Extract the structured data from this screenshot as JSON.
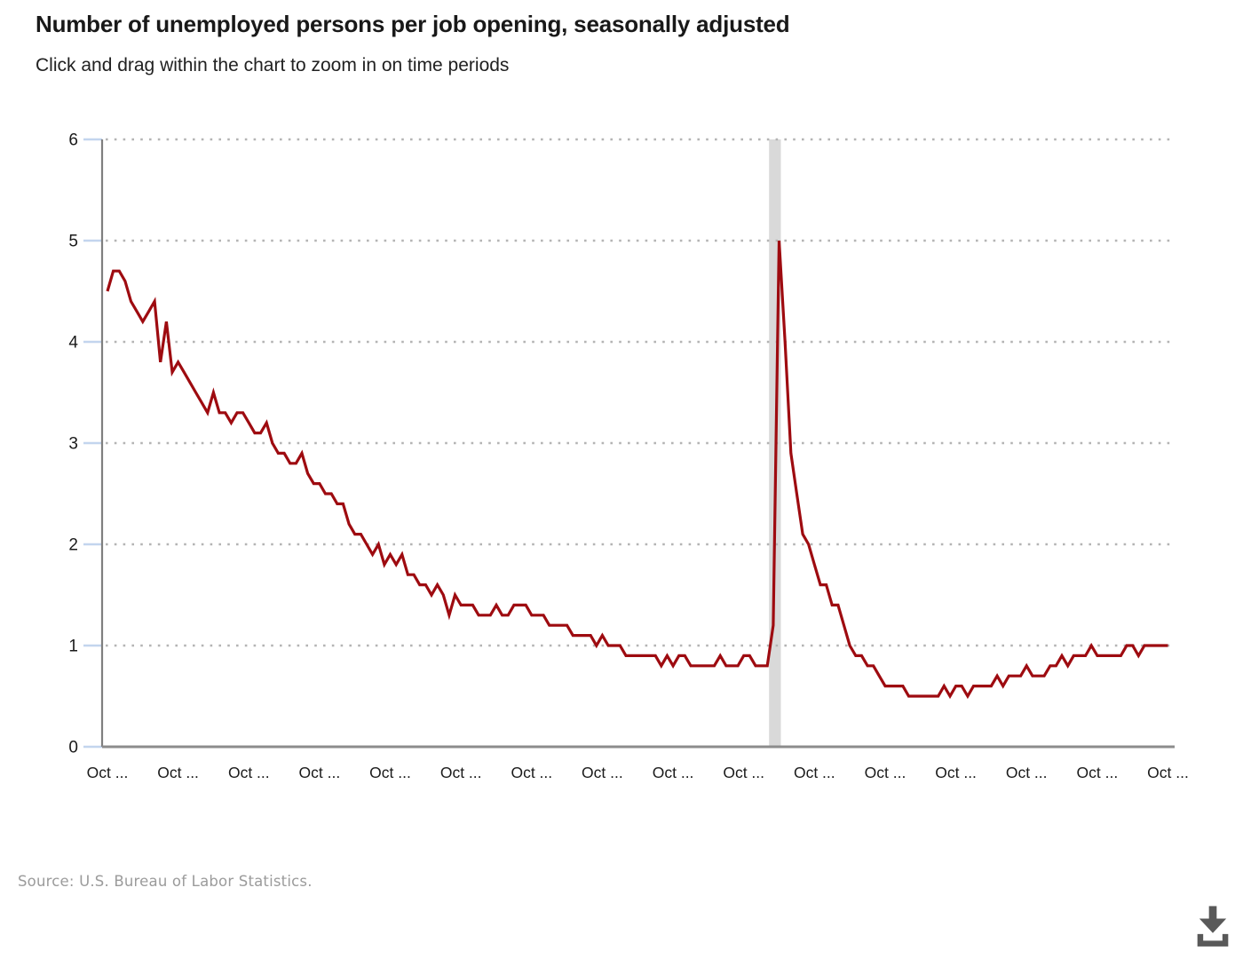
{
  "header": {
    "title": "Number of unemployed persons per job opening, seasonally adjusted",
    "subtitle": "Click and drag within the chart to zoom in on time periods"
  },
  "chart_data": {
    "type": "line",
    "title": "Number of unemployed persons per job opening, seasonally adjusted",
    "xlabel": "",
    "ylabel": "",
    "ylim": [
      0,
      6
    ],
    "yticks": [
      0,
      1,
      2,
      3,
      4,
      5,
      6
    ],
    "grid": "dotted-horizontal",
    "legend": "none",
    "x_tick_labels": [
      "Oct ...",
      "Oct ...",
      "Oct ...",
      "Oct ...",
      "Oct ...",
      "Oct ...",
      "Oct ...",
      "Oct ...",
      "Oct ...",
      "Oct ...",
      "Oct ...",
      "Oct ...",
      "Oct ...",
      "Oct ...",
      "Oct ...",
      "Oct ..."
    ],
    "months_per_x_tick": 12,
    "recession_band": {
      "from_month": 112.3,
      "to_month": 114.3,
      "color": "#d9d9d9"
    },
    "series": [
      {
        "name": "Unemployed persons per job opening, seasonally adjusted",
        "color": "#9e0b10",
        "values": [
          4.5,
          4.7,
          4.7,
          4.6,
          4.4,
          4.3,
          4.2,
          4.3,
          4.4,
          3.8,
          4.2,
          3.7,
          3.8,
          3.7,
          3.6,
          3.5,
          3.4,
          3.3,
          3.5,
          3.3,
          3.3,
          3.2,
          3.3,
          3.3,
          3.2,
          3.1,
          3.1,
          3.2,
          3.0,
          2.9,
          2.9,
          2.8,
          2.8,
          2.9,
          2.7,
          2.6,
          2.6,
          2.5,
          2.5,
          2.4,
          2.4,
          2.2,
          2.1,
          2.1,
          2.0,
          1.9,
          2.0,
          1.8,
          1.9,
          1.8,
          1.9,
          1.7,
          1.7,
          1.6,
          1.6,
          1.5,
          1.6,
          1.5,
          1.3,
          1.5,
          1.4,
          1.4,
          1.4,
          1.3,
          1.3,
          1.3,
          1.4,
          1.3,
          1.3,
          1.4,
          1.4,
          1.4,
          1.3,
          1.3,
          1.3,
          1.2,
          1.2,
          1.2,
          1.2,
          1.1,
          1.1,
          1.1,
          1.1,
          1.0,
          1.1,
          1.0,
          1.0,
          1.0,
          0.9,
          0.9,
          0.9,
          0.9,
          0.9,
          0.9,
          0.8,
          0.9,
          0.8,
          0.9,
          0.9,
          0.8,
          0.8,
          0.8,
          0.8,
          0.8,
          0.9,
          0.8,
          0.8,
          0.8,
          0.9,
          0.9,
          0.8,
          0.8,
          0.8,
          1.2,
          5.0,
          4.0,
          2.9,
          2.5,
          2.1,
          2.0,
          1.8,
          1.6,
          1.6,
          1.4,
          1.4,
          1.2,
          1.0,
          0.9,
          0.9,
          0.8,
          0.8,
          0.7,
          0.6,
          0.6,
          0.6,
          0.6,
          0.5,
          0.5,
          0.5,
          0.5,
          0.5,
          0.5,
          0.6,
          0.5,
          0.6,
          0.6,
          0.5,
          0.6,
          0.6,
          0.6,
          0.6,
          0.7,
          0.6,
          0.7,
          0.7,
          0.7,
          0.8,
          0.7,
          0.7,
          0.7,
          0.8,
          0.8,
          0.9,
          0.8,
          0.9,
          0.9,
          0.9,
          1.0,
          0.9,
          0.9,
          0.9,
          0.9,
          0.9,
          1.0,
          1.0,
          0.9,
          1.0,
          1.0,
          1.0,
          1.0,
          1.0
        ]
      }
    ],
    "colors": {
      "y_axis": "#7f7f7f",
      "x_baseline": "#8c8c8c",
      "grid_dots": "#b4b4b4",
      "y_tick_mark": "#c3d5ee",
      "axis_label_text": "#1a1a1a"
    }
  },
  "footer": {
    "source": "Source: U.S. Bureau of Labor Statistics."
  },
  "icons": {
    "download": "download-icon"
  }
}
